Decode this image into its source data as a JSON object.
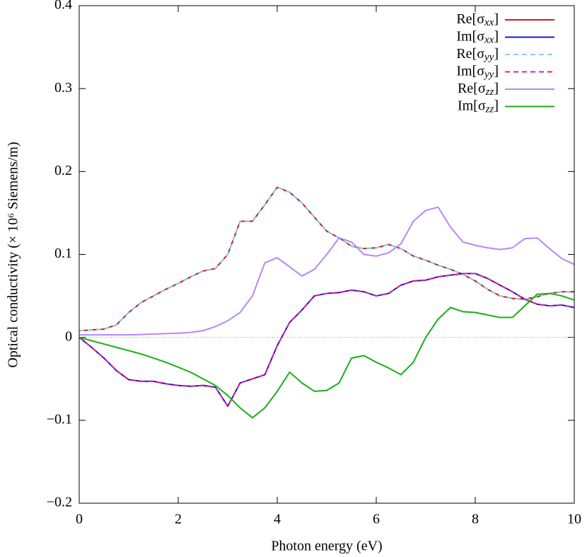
{
  "chart_data": {
    "type": "line",
    "x_label": "Photon energy (eV)",
    "y_label": "Optical conductivity (× 10⁶ Siemens/m)",
    "x": [
      0,
      0.25,
      0.5,
      0.75,
      1,
      1.25,
      1.5,
      1.75,
      2,
      2.25,
      2.5,
      2.75,
      3,
      3.25,
      3.5,
      3.75,
      4,
      4.25,
      4.5,
      4.75,
      5,
      5.25,
      5.5,
      5.75,
      6,
      6.25,
      6.5,
      6.75,
      7,
      7.25,
      7.5,
      7.75,
      8,
      8.25,
      8.5,
      8.75,
      9,
      9.25,
      9.5,
      9.75,
      10
    ],
    "series": [
      {
        "name": "Re[σxx]",
        "color": "#d01c1c",
        "dashed": false,
        "values": [
          0.008,
          0.009,
          0.01,
          0.015,
          0.03,
          0.042,
          0.05,
          0.058,
          0.065,
          0.073,
          0.08,
          0.083,
          0.1,
          0.14,
          0.14,
          0.16,
          0.181,
          0.175,
          0.162,
          0.145,
          0.128,
          0.12,
          0.11,
          0.107,
          0.108,
          0.112,
          0.107,
          0.098,
          0.093,
          0.087,
          0.082,
          0.076,
          0.068,
          0.058,
          0.05,
          0.047,
          0.046,
          0.049,
          0.053,
          0.055,
          0.055
        ]
      },
      {
        "name": "Im[σxx]",
        "color": "#1a1acc",
        "dashed": false,
        "values": [
          0,
          -0.012,
          -0.025,
          -0.04,
          -0.051,
          -0.053,
          -0.053,
          -0.056,
          -0.058,
          -0.059,
          -0.058,
          -0.06,
          -0.083,
          -0.055,
          -0.05,
          -0.045,
          -0.01,
          0.018,
          0.033,
          0.05,
          0.053,
          0.054,
          0.057,
          0.055,
          0.05,
          0.053,
          0.063,
          0.068,
          0.069,
          0.073,
          0.075,
          0.077,
          0.077,
          0.071,
          0.063,
          0.055,
          0.046,
          0.04,
          0.038,
          0.039,
          0.036
        ]
      },
      {
        "name": "Re[σyy]",
        "color": "#87cdea",
        "dashed": true,
        "values": [
          0.008,
          0.009,
          0.01,
          0.015,
          0.03,
          0.042,
          0.05,
          0.058,
          0.065,
          0.073,
          0.08,
          0.083,
          0.1,
          0.14,
          0.14,
          0.16,
          0.181,
          0.175,
          0.162,
          0.145,
          0.128,
          0.12,
          0.11,
          0.107,
          0.108,
          0.112,
          0.107,
          0.098,
          0.093,
          0.087,
          0.082,
          0.076,
          0.068,
          0.058,
          0.05,
          0.047,
          0.046,
          0.049,
          0.053,
          0.055,
          0.055
        ]
      },
      {
        "name": "Im[σyy]",
        "color": "#e0208c",
        "dashed": true,
        "values": [
          0,
          -0.012,
          -0.025,
          -0.04,
          -0.051,
          -0.053,
          -0.053,
          -0.056,
          -0.058,
          -0.059,
          -0.058,
          -0.06,
          -0.083,
          -0.055,
          -0.05,
          -0.045,
          -0.01,
          0.018,
          0.033,
          0.05,
          0.053,
          0.054,
          0.057,
          0.055,
          0.05,
          0.053,
          0.063,
          0.068,
          0.069,
          0.073,
          0.075,
          0.077,
          0.077,
          0.071,
          0.063,
          0.055,
          0.046,
          0.04,
          0.038,
          0.039,
          0.036
        ]
      },
      {
        "name": "Re[σzz]",
        "color": "#b887f5",
        "dashed": false,
        "values": [
          0.003,
          0.003,
          0.003,
          0.003,
          0.003,
          0.0035,
          0.004,
          0.0045,
          0.005,
          0.006,
          0.008,
          0.013,
          0.02,
          0.03,
          0.05,
          0.09,
          0.096,
          0.085,
          0.074,
          0.082,
          0.1,
          0.12,
          0.115,
          0.1,
          0.098,
          0.102,
          0.113,
          0.14,
          0.153,
          0.157,
          0.133,
          0.115,
          0.111,
          0.108,
          0.106,
          0.108,
          0.119,
          0.12,
          0.107,
          0.095,
          0.088
        ]
      },
      {
        "name": "Im[σzz]",
        "color": "#17b017",
        "dashed": false,
        "values": [
          0,
          -0.004,
          -0.008,
          -0.012,
          -0.016,
          -0.02,
          -0.025,
          -0.03,
          -0.036,
          -0.042,
          -0.05,
          -0.058,
          -0.07,
          -0.085,
          -0.097,
          -0.085,
          -0.065,
          -0.042,
          -0.055,
          -0.065,
          -0.064,
          -0.055,
          -0.025,
          -0.022,
          -0.03,
          -0.037,
          -0.045,
          -0.03,
          0,
          0.022,
          0.036,
          0.031,
          0.03,
          0.027,
          0.024,
          0.024,
          0.038,
          0.052,
          0.053,
          0.05,
          0.045
        ]
      }
    ],
    "xlim": [
      0,
      10
    ],
    "xticks": [
      0,
      2,
      4,
      6,
      8,
      10
    ],
    "ylim": [
      -0.2,
      0.4
    ],
    "yticks": [
      {
        "value": -0.2,
        "label": "−0.2"
      },
      {
        "value": -0.1,
        "label": "−0.1"
      },
      0,
      0.1,
      0.2,
      0.3,
      0.4
    ],
    "zero_line": true,
    "legend": "top right"
  }
}
